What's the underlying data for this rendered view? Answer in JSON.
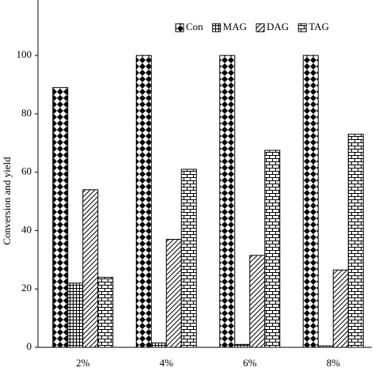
{
  "chart_data": {
    "type": "bar",
    "y_label": "Conversion and yield",
    "categories": [
      "2%",
      "4%",
      "6%",
      "8%"
    ],
    "series": [
      {
        "name": "Con",
        "color": "#000000",
        "pattern": "diamond",
        "values": [
          89,
          100,
          100,
          100
        ]
      },
      {
        "name": "MAG",
        "color": "#000000",
        "pattern": "grid",
        "values": [
          22,
          1.5,
          1,
          0.5
        ]
      },
      {
        "name": "DAG",
        "color": "#000000",
        "pattern": "hatch",
        "values": [
          54,
          37,
          31.5,
          26.5
        ]
      },
      {
        "name": "TAG",
        "color": "#000000",
        "pattern": "brick",
        "values": [
          24,
          61,
          67.5,
          73
        ]
      }
    ],
    "ylim": [
      0,
      119
    ],
    "yticks": [
      0,
      20,
      40,
      60,
      80,
      100
    ],
    "grid": false,
    "legend": "top-right"
  }
}
